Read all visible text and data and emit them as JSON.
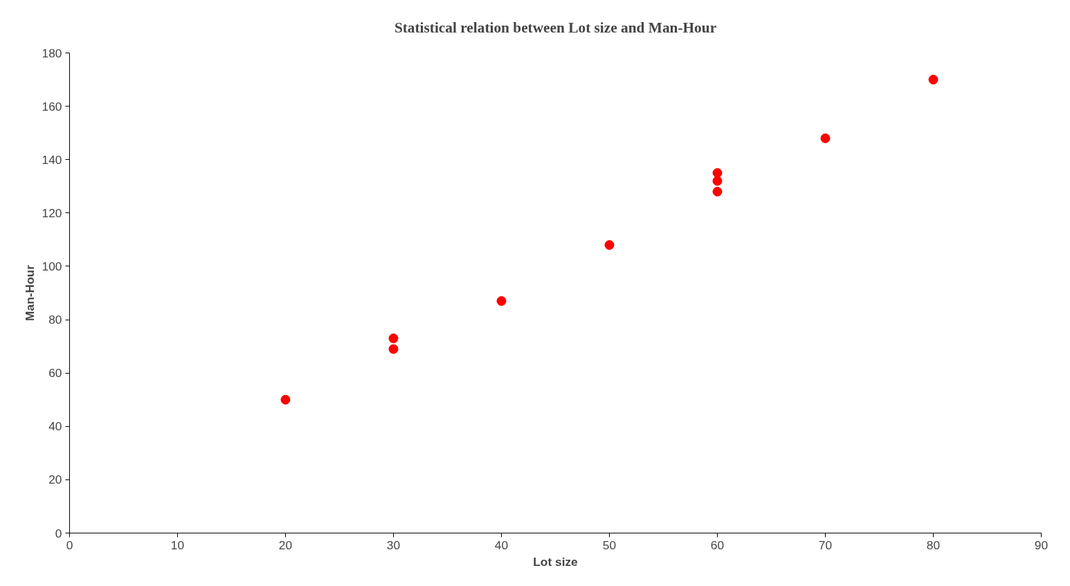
{
  "chart_data": {
    "type": "scatter",
    "title": "Statistical relation between Lot size and Man-Hour",
    "xlabel": "Lot size",
    "ylabel": "Man-Hour",
    "x": [
      20,
      30,
      30,
      40,
      50,
      60,
      60,
      60,
      70,
      80
    ],
    "values": [
      50,
      73,
      69,
      87,
      108,
      135,
      132,
      128,
      148,
      170
    ],
    "color": "#ff0000",
    "marker": "circle",
    "xlim": [
      0,
      90
    ],
    "xticks": [
      0,
      10,
      20,
      30,
      40,
      50,
      60,
      70,
      80,
      90
    ],
    "ylim": [
      0,
      180
    ],
    "yticks": [
      0,
      20,
      40,
      60,
      80,
      100,
      120,
      140,
      160,
      180
    ],
    "grid": false,
    "legend": false
  }
}
